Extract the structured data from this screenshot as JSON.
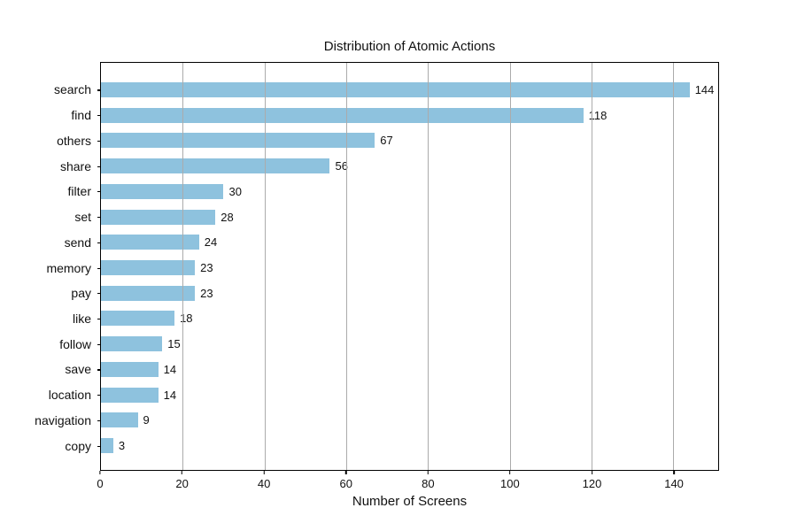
{
  "chart_data": {
    "type": "bar",
    "orientation": "horizontal",
    "title": "Distribution of Atomic Actions",
    "xlabel": "Number of Screens",
    "ylabel": "",
    "categories": [
      "search",
      "find",
      "others",
      "share",
      "filter",
      "set",
      "send",
      "memory",
      "pay",
      "like",
      "follow",
      "save",
      "location",
      "navigation",
      "copy"
    ],
    "values": [
      144,
      118,
      67,
      56,
      30,
      28,
      24,
      23,
      23,
      18,
      15,
      14,
      14,
      9,
      3
    ],
    "value_labels": [
      "144",
      "118",
      "67",
      "56",
      "30",
      "28",
      "24",
      "23",
      "23",
      "18",
      "15",
      "14",
      "14",
      "9",
      "3"
    ],
    "xticks": [
      0,
      20,
      40,
      60,
      80,
      100,
      120,
      140
    ],
    "xlim": [
      0,
      151
    ],
    "grid": "x-axis gridlines on, drawn over bars",
    "legend": "none",
    "colors": {
      "bar": "#8EC2DE",
      "gridline": "#ABABAB",
      "spine": "#000000",
      "text": "#111111",
      "background": "#ffffff"
    }
  }
}
